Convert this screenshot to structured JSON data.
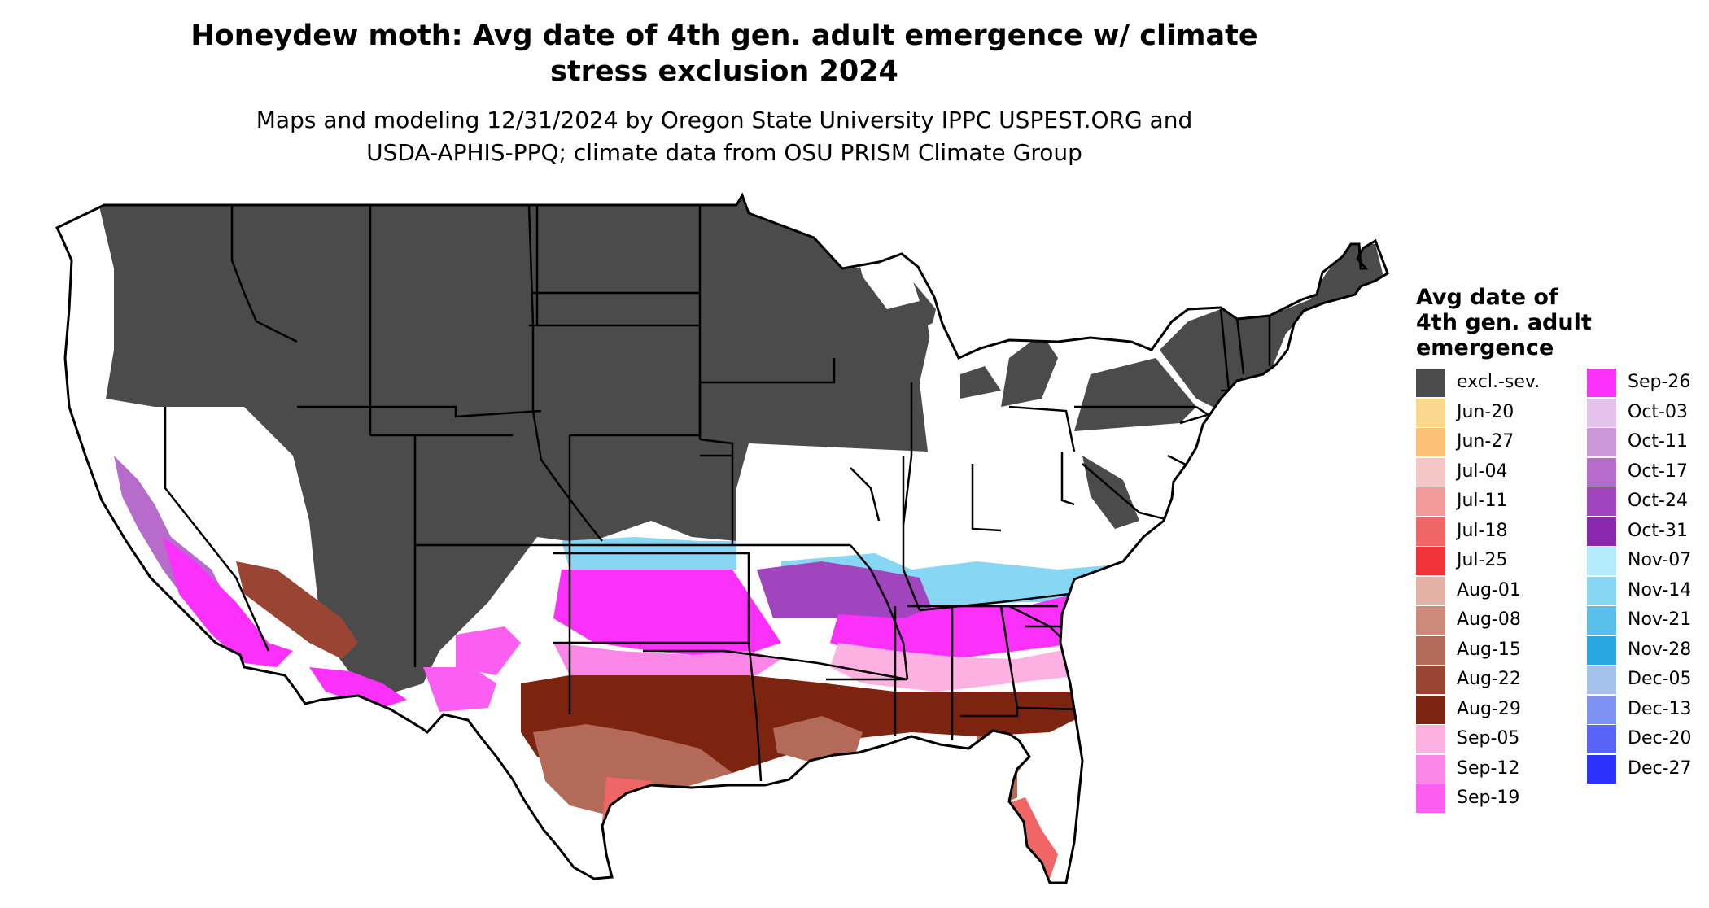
{
  "title": {
    "line1": "Honeydew moth: Avg date of 4th gen. adult emergence w/ climate",
    "line2": "stress exclusion 2024"
  },
  "subtitle": {
    "line1": "Maps and modeling 12/31/2024 by Oregon State University IPPC USPEST.ORG and",
    "line2": "USDA-APHIS-PPQ; climate data from OSU PRISM Climate Group"
  },
  "legend": {
    "title_line1": "Avg date of",
    "title_line2": "4th gen. adult",
    "title_line3": "emergence",
    "items": [
      {
        "label": "excl.-sev.",
        "color": "#4b4b4b"
      },
      {
        "label": "Jun-20",
        "color": "#fcd88e"
      },
      {
        "label": "Jun-27",
        "color": "#fbc177"
      },
      {
        "label": "Jul-04",
        "color": "#f4c6c6"
      },
      {
        "label": "Jul-11",
        "color": "#f29999"
      },
      {
        "label": "Jul-18",
        "color": "#f06565"
      },
      {
        "label": "Jul-25",
        "color": "#ef3336"
      },
      {
        "label": "Aug-01",
        "color": "#e3b2a4"
      },
      {
        "label": "Aug-08",
        "color": "#cc8a7a"
      },
      {
        "label": "Aug-15",
        "color": "#b36a58"
      },
      {
        "label": "Aug-22",
        "color": "#9a4534"
      },
      {
        "label": "Aug-29",
        "color": "#7c2410"
      },
      {
        "label": "Sep-05",
        "color": "#fdb0e2"
      },
      {
        "label": "Sep-12",
        "color": "#fc86e8"
      },
      {
        "label": "Sep-19",
        "color": "#fb5ef0"
      },
      {
        "label": "Sep-26",
        "color": "#fb30fa"
      },
      {
        "label": "Oct-03",
        "color": "#e4c2ec"
      },
      {
        "label": "Oct-11",
        "color": "#cb96da"
      },
      {
        "label": "Oct-17",
        "color": "#b76ccb"
      },
      {
        "label": "Oct-24",
        "color": "#a045bd"
      },
      {
        "label": "Oct-31",
        "color": "#8b27ae"
      },
      {
        "label": "Nov-07",
        "color": "#b3ecfd"
      },
      {
        "label": "Nov-14",
        "color": "#86d6f4"
      },
      {
        "label": "Nov-21",
        "color": "#57bfea"
      },
      {
        "label": "Nov-28",
        "color": "#27a6e0"
      },
      {
        "label": "Dec-05",
        "color": "#a3c1eb"
      },
      {
        "label": "Dec-13",
        "color": "#7d92f3"
      },
      {
        "label": "Dec-20",
        "color": "#5863f8"
      },
      {
        "label": "Dec-27",
        "color": "#2b32fc"
      }
    ]
  }
}
